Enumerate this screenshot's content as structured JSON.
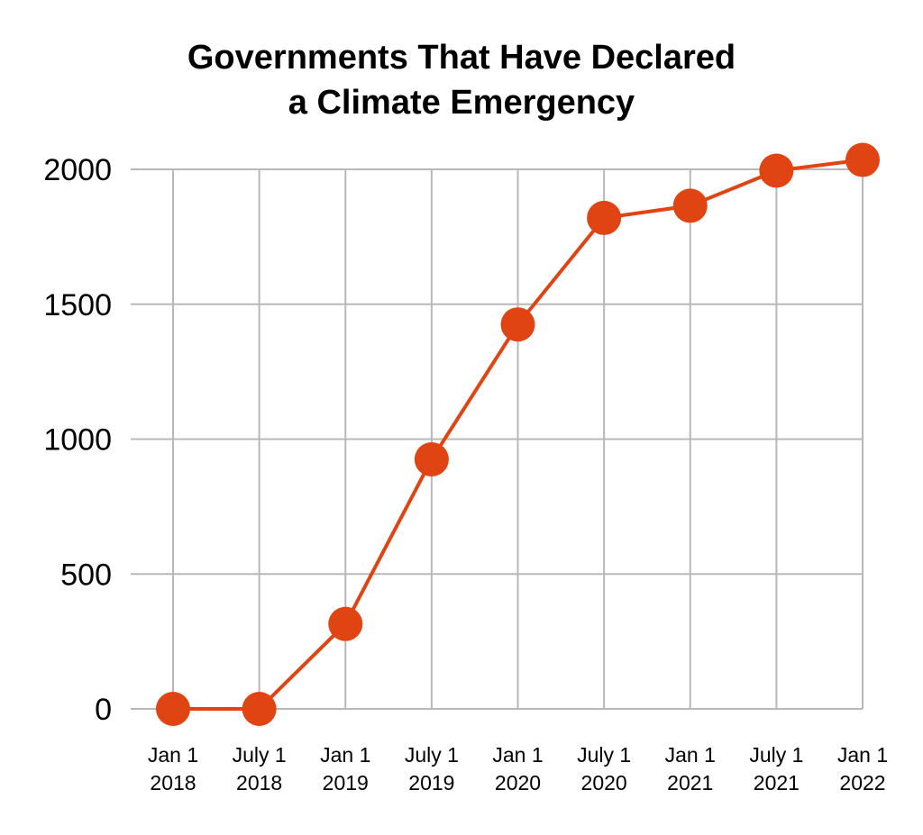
{
  "chart_data": {
    "type": "line",
    "title_lines": [
      "Governments That Have Declared",
      "a Climate Emergency"
    ],
    "xlabel": "",
    "ylabel": "",
    "categories": [
      [
        "Jan 1",
        "2018"
      ],
      [
        "July 1",
        "2018"
      ],
      [
        "Jan 1",
        "2019"
      ],
      [
        "July 1",
        "2019"
      ],
      [
        "Jan 1",
        "2020"
      ],
      [
        "July 1",
        "2020"
      ],
      [
        "Jan 1",
        "2021"
      ],
      [
        "July 1",
        "2021"
      ],
      [
        "Jan 1",
        "2022"
      ]
    ],
    "values": [
      0,
      0,
      315,
      925,
      1425,
      1820,
      1865,
      1995,
      2035
    ],
    "y_ticks": [
      0,
      500,
      1000,
      1500,
      2000
    ],
    "ylim": [
      0,
      2000
    ],
    "grid": true,
    "legend": "none",
    "colors": {
      "series": "#e04412",
      "grid": "#b8b8b8",
      "text": "#000000"
    }
  }
}
